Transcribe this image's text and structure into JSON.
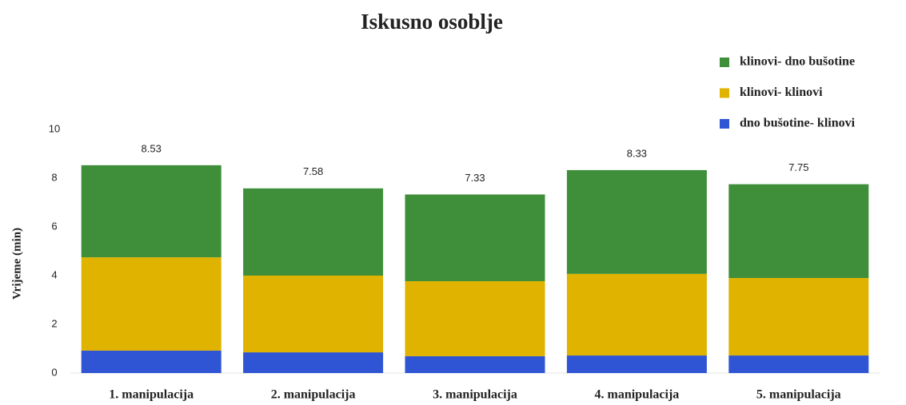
{
  "chart_data": {
    "type": "stacked_bar",
    "title": "Iskusno osoblje",
    "ylabel": "Vrijeme (min)",
    "categories": [
      "1. manipulacija",
      "2. manipulacija",
      "3. manipulacija",
      "4. manipulacija",
      "5. manipulacija"
    ],
    "series": [
      {
        "name": "dno bušotine- klinovi",
        "color": "#2f55d4",
        "values": [
          0.92,
          0.85,
          0.69,
          0.72,
          0.72
        ]
      },
      {
        "name": "klinovi- klinovi",
        "color": "#dfb300",
        "values": [
          3.83,
          3.15,
          3.08,
          3.35,
          3.18
        ]
      },
      {
        "name": "klinovi- dno bušotine",
        "color": "#3f8f3a",
        "values": [
          3.78,
          3.58,
          3.56,
          4.26,
          3.85
        ]
      }
    ],
    "totals": [
      8.53,
      7.58,
      7.33,
      8.33,
      7.75
    ],
    "ylim": [
      0,
      10
    ],
    "yticks": [
      0,
      2,
      4,
      6,
      8,
      10
    ],
    "grid": false,
    "legend": "top-right"
  }
}
